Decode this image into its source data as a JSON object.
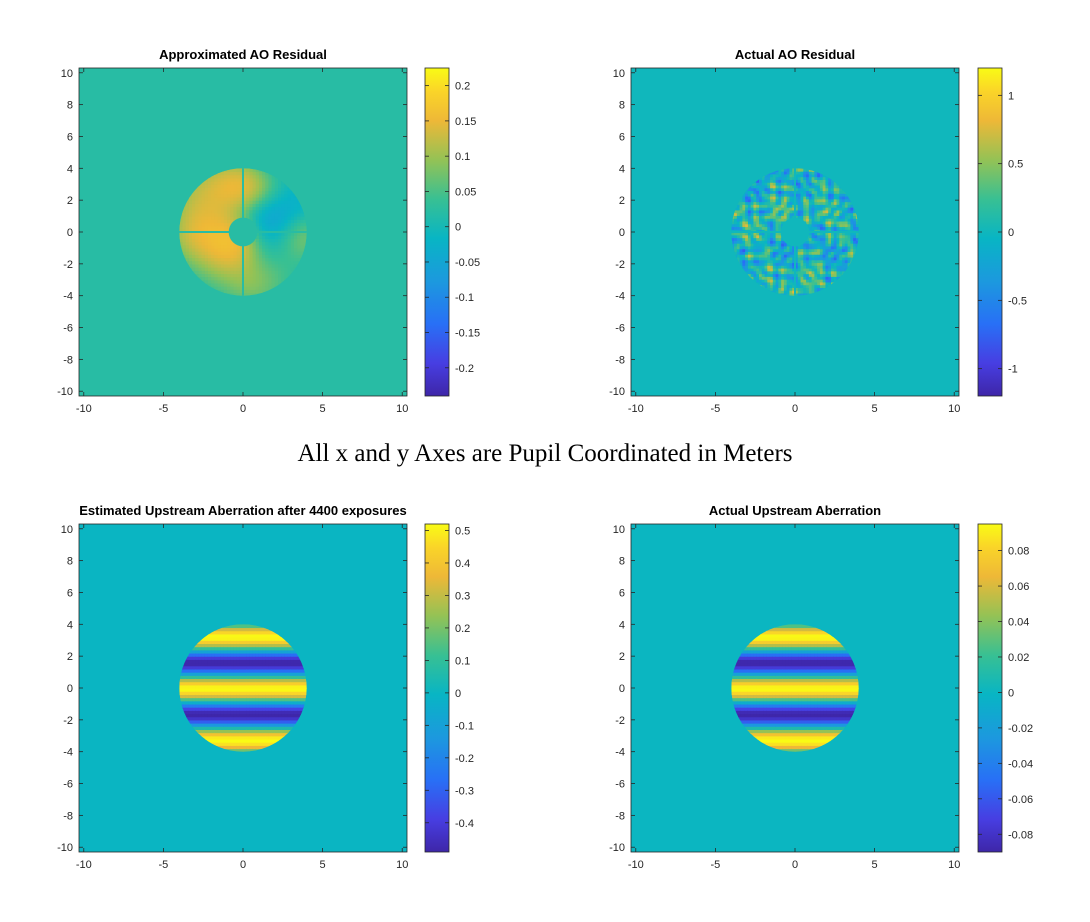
{
  "figure": {
    "caption": "All x and y Axes are Pupil Coordinated in Meters"
  },
  "chart_data": [
    {
      "type": "heatmap",
      "title": "Approximated AO Residual",
      "pattern": "smooth-blobs",
      "x_range": [
        -10.3,
        10.3
      ],
      "y_range": [
        -10.3,
        10.3
      ],
      "x_ticks": [
        -10,
        -5,
        0,
        5,
        10
      ],
      "y_ticks": [
        -10,
        -8,
        -6,
        -4,
        -2,
        0,
        2,
        4,
        6,
        8,
        10
      ],
      "pupil_radius": 4,
      "spiders": true,
      "central_obstruction_radius": 0.9,
      "colorbar": {
        "min": -0.24,
        "max": 0.225,
        "ticks": [
          -0.2,
          -0.15,
          -0.1,
          -0.05,
          0,
          0.05,
          0.1,
          0.15,
          0.2
        ]
      },
      "background_value": 0.02
    },
    {
      "type": "heatmap",
      "title": "Actual AO Residual",
      "pattern": "speckle",
      "x_range": [
        -10.3,
        10.3
      ],
      "y_range": [
        -10.3,
        10.3
      ],
      "x_ticks": [
        -10,
        -5,
        0,
        5,
        10
      ],
      "y_ticks": [
        -10,
        -8,
        -6,
        -4,
        -2,
        0,
        2,
        4,
        6,
        8,
        10
      ],
      "pupil_radius": 4,
      "spiders": true,
      "central_obstruction_radius": 0.9,
      "colorbar": {
        "min": -1.2,
        "max": 1.2,
        "ticks": [
          -1,
          -0.5,
          0,
          0.5,
          1
        ]
      },
      "background_value": 0.0
    },
    {
      "type": "heatmap",
      "title": "Estimated Upstream Aberration after 4400 exposures",
      "pattern": "horizontal-stripes",
      "x_range": [
        -10.3,
        10.3
      ],
      "y_range": [
        -10.3,
        10.3
      ],
      "x_ticks": [
        -10,
        -5,
        0,
        5,
        10
      ],
      "y_ticks": [
        -10,
        -8,
        -6,
        -4,
        -2,
        0,
        2,
        4,
        6,
        8,
        10
      ],
      "pupil_radius": 4,
      "spiders": false,
      "central_obstruction_radius": 0,
      "colorbar": {
        "min": -0.49,
        "max": 0.52,
        "ticks": [
          -0.4,
          -0.3,
          -0.2,
          -0.1,
          0,
          0.1,
          0.2,
          0.3,
          0.4,
          0.5
        ]
      },
      "background_value": 0.0
    },
    {
      "type": "heatmap",
      "title": "Actual Upstream Aberration",
      "pattern": "horizontal-stripes",
      "x_range": [
        -10.3,
        10.3
      ],
      "y_range": [
        -10.3,
        10.3
      ],
      "x_ticks": [
        -10,
        -5,
        0,
        5,
        10
      ],
      "y_ticks": [
        -10,
        -8,
        -6,
        -4,
        -2,
        0,
        2,
        4,
        6,
        8,
        10
      ],
      "pupil_radius": 4,
      "spiders": false,
      "central_obstruction_radius": 0,
      "colorbar": {
        "min": -0.09,
        "max": 0.095,
        "ticks": [
          -0.08,
          -0.06,
          -0.04,
          -0.02,
          0,
          0.02,
          0.04,
          0.06,
          0.08
        ]
      },
      "background_value": 0.0
    }
  ]
}
